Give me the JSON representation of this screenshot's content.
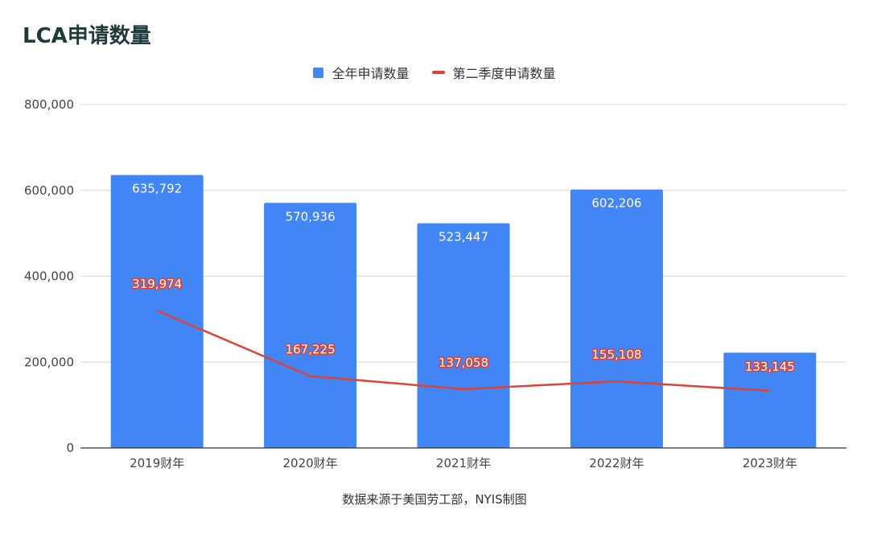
{
  "title": "LCA申请数量",
  "source": "数据来源于美国劳工部，NYIS制图",
  "colors": {
    "bar": "#4285f4",
    "line": "#db4437",
    "grid": "#d9d9d9",
    "axis": "#333333"
  },
  "chart_data": {
    "type": "bar",
    "title": "LCA申请数量",
    "categories": [
      "2019财年",
      "2020财年",
      "2021财年",
      "2022财年",
      "2023财年"
    ],
    "series": [
      {
        "name": "全年申请数量",
        "type": "bar",
        "values": [
          635792,
          570936,
          523447,
          602206,
          222000
        ],
        "labels": [
          "635,792",
          "570,936",
          "523,447",
          "602,206",
          null
        ]
      },
      {
        "name": "第二季度申请数量",
        "type": "line",
        "values": [
          319974,
          167225,
          137058,
          155108,
          133145
        ],
        "labels": [
          "319,974",
          "167,225",
          "137,058",
          "155,108",
          "133,145"
        ]
      }
    ],
    "ylim": [
      0,
      800000
    ],
    "yticks": [
      "0",
      "200,000",
      "400,000",
      "600,000",
      "800,000"
    ],
    "xlabel": "",
    "ylabel": "",
    "grid": true,
    "legend": "top-center"
  }
}
